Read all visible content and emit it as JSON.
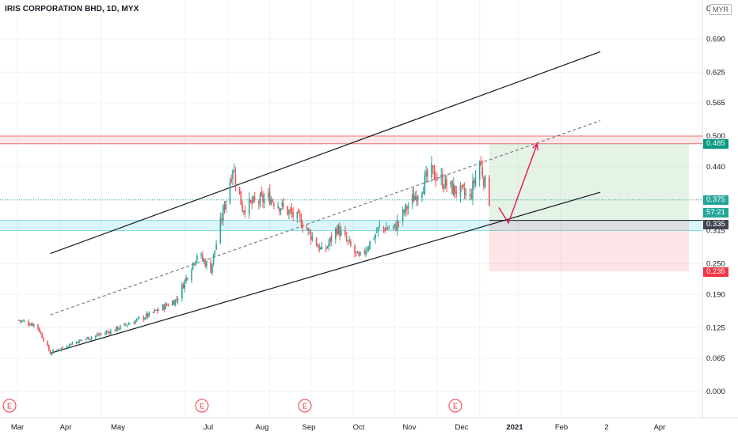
{
  "header": {
    "title": "IRIS CORPORATION BHD, 1D, MYX",
    "currency": "MYR",
    "axis_top_label": "0"
  },
  "price_axis": {
    "ticks": [
      "0.690",
      "0.625",
      "0.565",
      "0.500",
      "0.440",
      "0.375",
      "0.315",
      "0.250",
      "0.190",
      "0.125",
      "0.065",
      "0.000"
    ]
  },
  "time_axis": {
    "ticks": [
      "Mar",
      "Apr",
      "May",
      "Jul",
      "Aug",
      "Sep",
      "Oct",
      "Nov",
      "Dec",
      "2021",
      "Feb",
      "2",
      "Apr"
    ]
  },
  "price_tags": {
    "target": "0.485",
    "last": "0.375",
    "countdown": "57:21",
    "entry": "0.335",
    "stop": "0.235"
  },
  "earnings_markers": [
    "E",
    "E",
    "E",
    "E"
  ],
  "colors": {
    "up": "#26a69a",
    "down": "#ef5350",
    "target_tag": "#089981",
    "stop_tag": "#f23645",
    "entry_tag": "#434651",
    "resistance_zone": "#f23645",
    "support_zone": "#00bcd4",
    "profit_zone": "#4caf50",
    "loss_zone": "#f23645",
    "projection_arrow": "#e91e63"
  },
  "chart_data": {
    "type": "candlestick",
    "title": "IRIS CORPORATION BHD, 1D, MYX",
    "unit": "MYR",
    "y_range": [
      0.0,
      0.69
    ],
    "x_range": [
      "2020-03",
      "2021-04"
    ],
    "close_path": [
      {
        "date": "2020-03-01",
        "close": 0.14
      },
      {
        "date": "2020-03-15",
        "close": 0.13
      },
      {
        "date": "2020-03-25",
        "close": 0.075
      },
      {
        "date": "2020-04-10",
        "close": 0.095
      },
      {
        "date": "2020-05-10",
        "close": 0.12
      },
      {
        "date": "2020-06-05",
        "close": 0.15
      },
      {
        "date": "2020-06-25",
        "close": 0.18
      },
      {
        "date": "2020-07-10",
        "close": 0.27
      },
      {
        "date": "2020-07-20",
        "close": 0.24
      },
      {
        "date": "2020-08-05",
        "close": 0.44
      },
      {
        "date": "2020-08-12",
        "close": 0.36
      },
      {
        "date": "2020-09-01",
        "close": 0.38
      },
      {
        "date": "2020-09-25",
        "close": 0.33
      },
      {
        "date": "2020-10-10",
        "close": 0.27
      },
      {
        "date": "2020-10-20",
        "close": 0.32
      },
      {
        "date": "2020-11-05",
        "close": 0.26
      },
      {
        "date": "2020-11-20",
        "close": 0.32
      },
      {
        "date": "2020-12-01",
        "close": 0.32
      },
      {
        "date": "2020-12-10",
        "close": 0.36
      },
      {
        "date": "2020-12-28",
        "close": 0.43
      },
      {
        "date": "2021-01-10",
        "close": 0.4
      },
      {
        "date": "2021-01-25",
        "close": 0.38
      },
      {
        "date": "2021-02-01",
        "close": 0.45
      },
      {
        "date": "2021-02-08",
        "close": 0.375
      }
    ],
    "horizontal_levels": {
      "resistance_zone": [
        0.485,
        0.5
      ],
      "support_zone": [
        0.315,
        0.335
      ],
      "last_price": 0.375
    },
    "trade_setup": {
      "entry": 0.335,
      "target": 0.485,
      "stop": 0.235
    },
    "channel": {
      "upper": [
        {
          "date": "2020-03-25",
          "price": 0.27
        },
        {
          "date": "2021-04-30",
          "price": 0.665
        }
      ],
      "middle_dashed": [
        {
          "date": "2020-03-25",
          "price": 0.15
        },
        {
          "date": "2021-04-30",
          "price": 0.53
        }
      ],
      "lower": [
        {
          "date": "2020-03-25",
          "price": 0.075
        },
        {
          "date": "2021-04-30",
          "price": 0.39
        }
      ]
    },
    "projection": [
      {
        "date": "2021-02-15",
        "price": 0.36
      },
      {
        "date": "2021-02-22",
        "price": 0.33
      },
      {
        "date": "2021-03-15",
        "price": 0.485
      }
    ]
  }
}
